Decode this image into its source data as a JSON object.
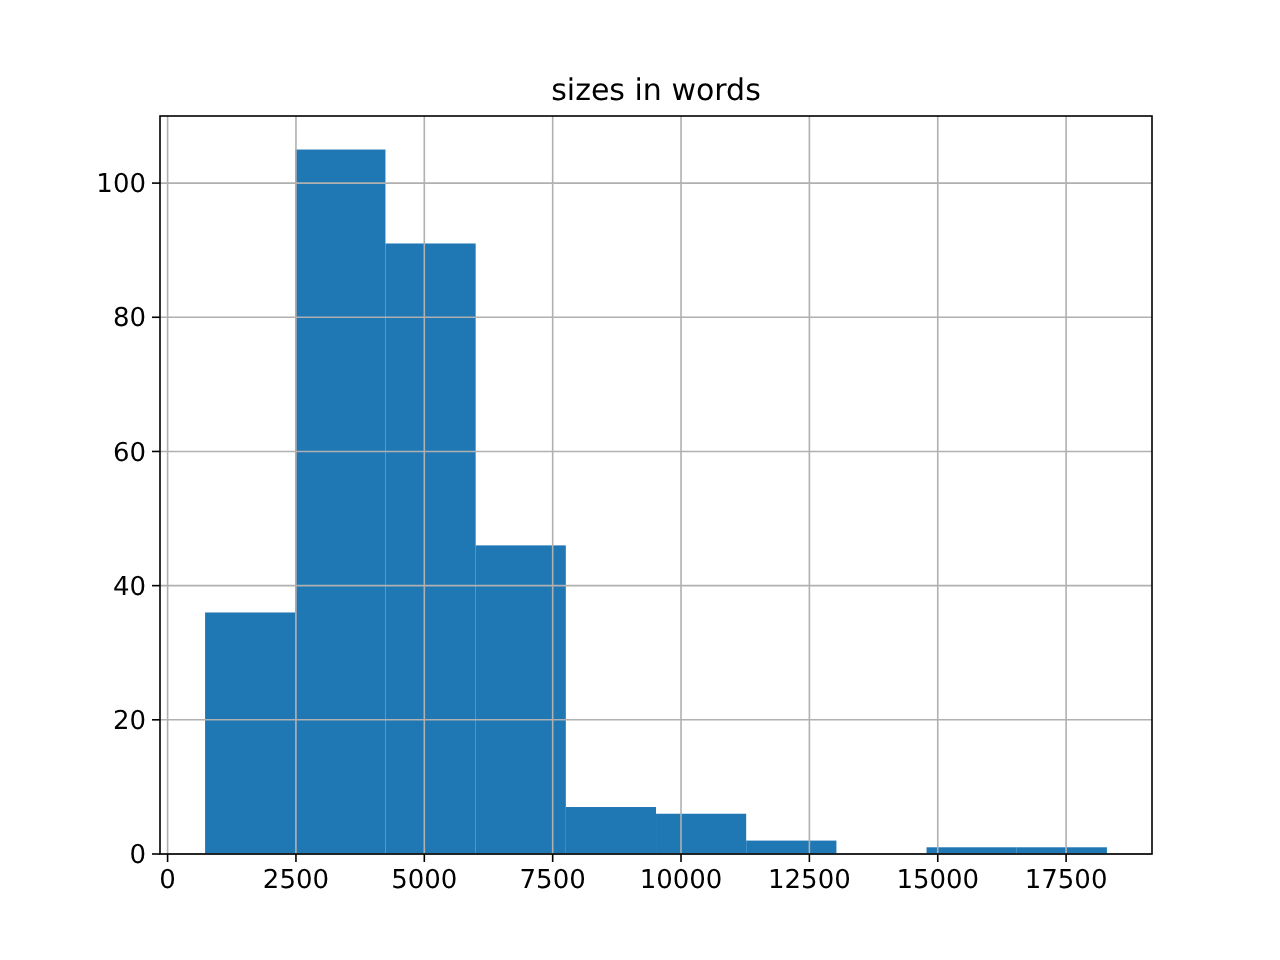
{
  "chart_data": {
    "type": "histogram",
    "title": "sizes in words",
    "bins": [
      730,
      2487,
      4243,
      6000,
      7756,
      9513,
      11269,
      13026,
      14782,
      16539,
      18295
    ],
    "values": [
      36,
      105,
      91,
      46,
      7,
      6,
      2,
      0,
      1,
      1
    ],
    "color": "#1f77b4",
    "xlim": [
      -148,
      19173
    ],
    "xticks": [
      0,
      2500,
      5000,
      7500,
      10000,
      12500,
      15000,
      17500
    ],
    "ylim": [
      0,
      110
    ],
    "yticks": [
      0,
      20,
      40,
      60,
      80,
      100
    ],
    "grid": true
  }
}
